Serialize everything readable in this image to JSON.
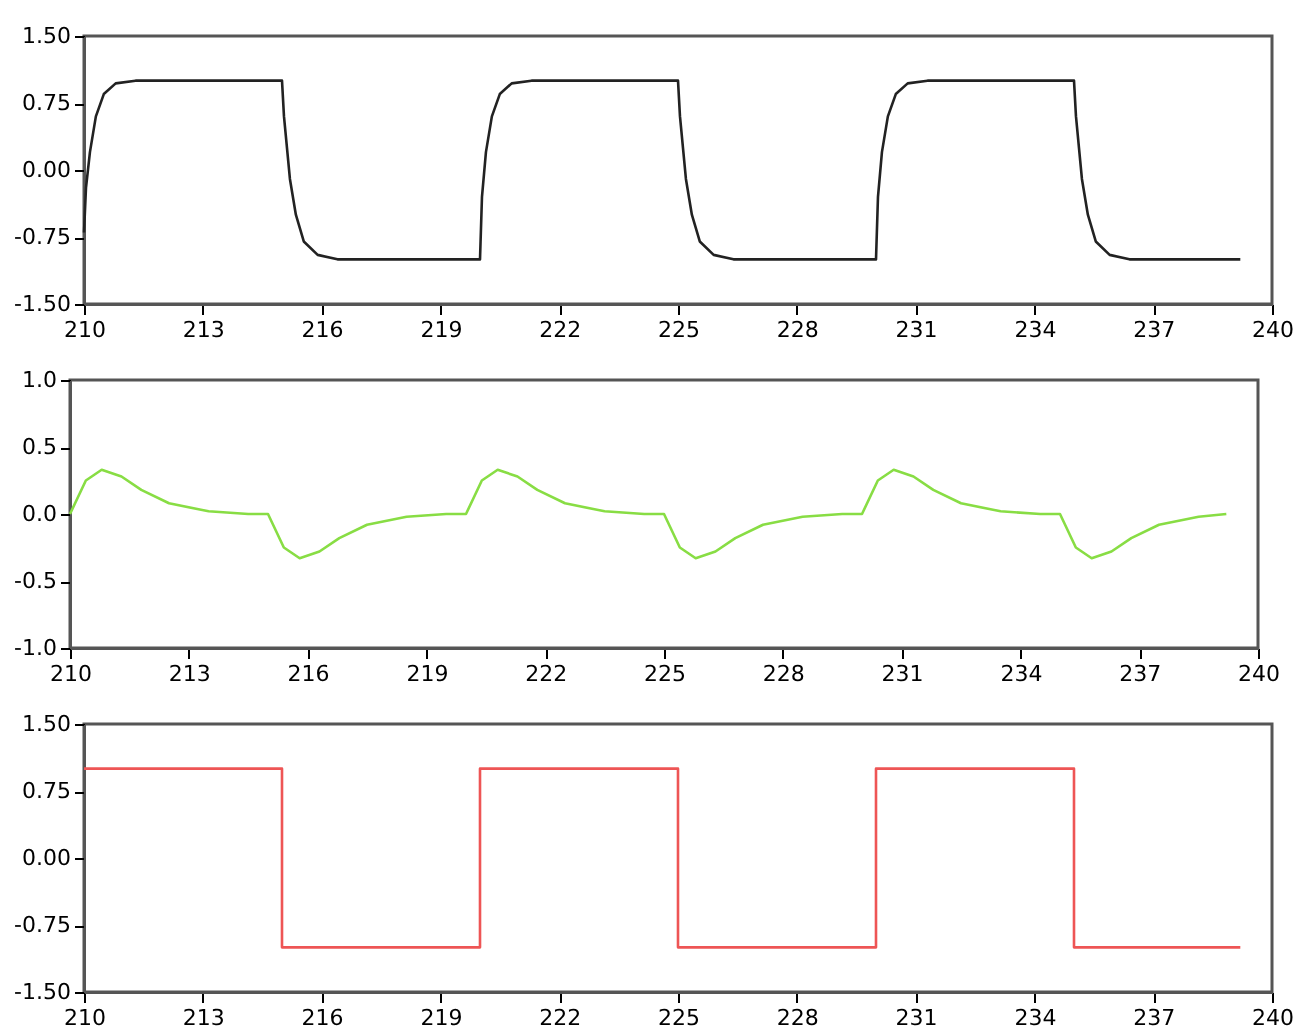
{
  "chart_data": [
    {
      "type": "line",
      "xlim": [
        210,
        240
      ],
      "xticks": [
        210,
        213,
        216,
        219,
        222,
        225,
        228,
        231,
        234,
        237,
        240
      ],
      "ylim": [
        -1.5,
        1.5
      ],
      "yticks": [
        {
          "value": -1.5,
          "label": "-1.50"
        },
        {
          "value": -0.75,
          "label": "-0.75"
        },
        {
          "value": 0,
          "label": "0.00"
        },
        {
          "value": 0.75,
          "label": "0.75"
        },
        {
          "value": 1.5,
          "label": "1.50"
        }
      ],
      "series": [
        {
          "color": "#222222",
          "x": [
            210,
            210.05,
            210.15,
            210.3,
            210.5,
            210.8,
            211.3,
            215,
            215.05,
            215.2,
            215.35,
            215.55,
            215.9,
            216.4,
            220,
            220.05,
            220.15,
            220.3,
            220.5,
            220.8,
            221.3,
            225,
            225.05,
            225.2,
            225.35,
            225.55,
            225.9,
            226.4,
            230,
            230.05,
            230.15,
            230.3,
            230.5,
            230.8,
            231.3,
            235,
            235.05,
            235.2,
            235.35,
            235.55,
            235.9,
            236.4,
            239.2
          ],
          "values": [
            -0.7,
            -0.2,
            0.2,
            0.6,
            0.85,
            0.97,
            1.0,
            1.0,
            0.6,
            -0.1,
            -0.5,
            -0.8,
            -0.95,
            -1.0,
            -1.0,
            -0.3,
            0.2,
            0.6,
            0.85,
            0.97,
            1.0,
            1.0,
            0.6,
            -0.1,
            -0.5,
            -0.8,
            -0.95,
            -1.0,
            -1.0,
            -0.3,
            0.2,
            0.6,
            0.85,
            0.97,
            1.0,
            1.0,
            0.6,
            -0.1,
            -0.5,
            -0.8,
            -0.95,
            -1.0,
            -1.0
          ]
        }
      ]
    },
    {
      "type": "line",
      "xlim": [
        210,
        240
      ],
      "xticks": [
        210,
        213,
        216,
        219,
        222,
        225,
        228,
        231,
        234,
        237,
        240
      ],
      "ylim": [
        -1,
        1
      ],
      "yticks": [
        {
          "value": -1,
          "label": "-1.0"
        },
        {
          "value": -0.5,
          "label": "-0.5"
        },
        {
          "value": 0,
          "label": "0.0"
        },
        {
          "value": 0.5,
          "label": "0.5"
        },
        {
          "value": 1,
          "label": "1.0"
        }
      ],
      "series": [
        {
          "color": "#88dd44",
          "x": [
            210,
            210.4,
            210.8,
            211.3,
            211.8,
            212.5,
            213.5,
            214.5,
            215,
            215.4,
            215.8,
            216.3,
            216.8,
            217.5,
            218.5,
            219.5,
            220,
            220.4,
            220.8,
            221.3,
            221.8,
            222.5,
            223.5,
            224.5,
            225,
            225.4,
            225.8,
            226.3,
            226.8,
            227.5,
            228.5,
            229.5,
            230,
            230.4,
            230.8,
            231.3,
            231.8,
            232.5,
            233.5,
            234.5,
            235,
            235.4,
            235.8,
            236.3,
            236.8,
            237.5,
            238.5,
            239.2
          ],
          "values": [
            0,
            0.25,
            0.33,
            0.28,
            0.18,
            0.08,
            0.02,
            0,
            0,
            -0.25,
            -0.33,
            -0.28,
            -0.18,
            -0.08,
            -0.02,
            0,
            0,
            0.25,
            0.33,
            0.28,
            0.18,
            0.08,
            0.02,
            0,
            0,
            -0.25,
            -0.33,
            -0.28,
            -0.18,
            -0.08,
            -0.02,
            0,
            0,
            0.25,
            0.33,
            0.28,
            0.18,
            0.08,
            0.02,
            0,
            0,
            -0.25,
            -0.33,
            -0.28,
            -0.18,
            -0.08,
            -0.02,
            0
          ]
        }
      ]
    },
    {
      "type": "step",
      "xlim": [
        210,
        240
      ],
      "xticks": [
        210,
        213,
        216,
        219,
        222,
        225,
        228,
        231,
        234,
        237,
        240
      ],
      "ylim": [
        -1.5,
        1.5
      ],
      "yticks": [
        {
          "value": -1.5,
          "label": "-1.50"
        },
        {
          "value": -0.75,
          "label": "-0.75"
        },
        {
          "value": 0,
          "label": "0.00"
        },
        {
          "value": 0.75,
          "label": "0.75"
        },
        {
          "value": 1.5,
          "label": "1.50"
        }
      ],
      "series": [
        {
          "color": "#ee5555",
          "x": [
            210,
            215,
            220,
            225,
            230,
            235,
            239.2
          ],
          "values": [
            1,
            -1,
            1,
            -1,
            1,
            -1,
            -1
          ]
        }
      ]
    }
  ]
}
